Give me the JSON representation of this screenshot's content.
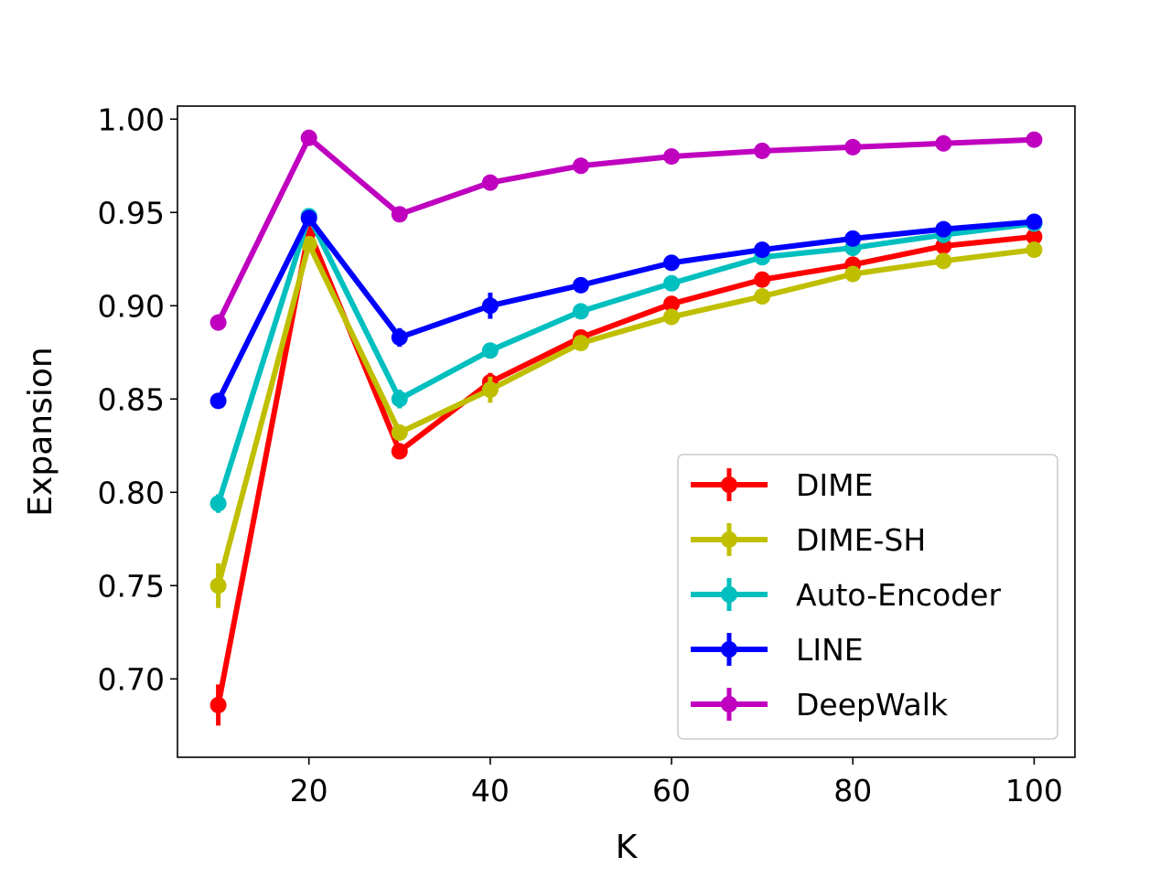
{
  "chart_data": {
    "type": "line",
    "title": "",
    "xlabel": "K",
    "ylabel": "Expansion",
    "xlim": [
      5.5,
      104.5
    ],
    "ylim": [
      0.658,
      1.007
    ],
    "xticks": [
      20,
      40,
      60,
      80,
      100
    ],
    "xtick_labels": [
      "20",
      "40",
      "60",
      "80",
      "100"
    ],
    "yticks": [
      0.7,
      0.75,
      0.8,
      0.85,
      0.9,
      0.95,
      1.0
    ],
    "ytick_labels": [
      "0.70",
      "0.75",
      "0.80",
      "0.85",
      "0.90",
      "0.95",
      "1.00"
    ],
    "grid": false,
    "legend_position": "lower-right",
    "x": [
      10,
      20,
      30,
      40,
      50,
      60,
      70,
      80,
      90,
      100
    ],
    "series": [
      {
        "name": "DIME",
        "color": "#ff0000",
        "values": [
          0.686,
          0.94,
          0.822,
          0.859,
          0.883,
          0.901,
          0.914,
          0.922,
          0.932,
          0.937
        ],
        "errors": [
          0.011,
          0.003,
          0.003,
          0.005,
          0.003,
          0.003,
          0.003,
          0.003,
          0.003,
          0.002
        ]
      },
      {
        "name": "DIME-SH",
        "color": "#bfbf00",
        "values": [
          0.75,
          0.933,
          0.832,
          0.855,
          0.88,
          0.894,
          0.905,
          0.917,
          0.924,
          0.93
        ],
        "errors": [
          0.012,
          0.003,
          0.004,
          0.007,
          0.004,
          0.004,
          0.004,
          0.003,
          0.003,
          0.002
        ]
      },
      {
        "name": "Auto-Encoder",
        "color": "#00bfbf",
        "values": [
          0.794,
          0.948,
          0.85,
          0.876,
          0.897,
          0.912,
          0.926,
          0.931,
          0.938,
          0.944
        ],
        "errors": [
          0.005,
          0.002,
          0.005,
          0.003,
          0.002,
          0.002,
          0.002,
          0.002,
          0.002,
          0.002
        ]
      },
      {
        "name": "LINE",
        "color": "#0000ff",
        "values": [
          0.849,
          0.947,
          0.883,
          0.9,
          0.911,
          0.923,
          0.93,
          0.936,
          0.941,
          0.945
        ],
        "errors": [
          0.003,
          0.003,
          0.005,
          0.007,
          0.004,
          0.003,
          0.002,
          0.004,
          0.002,
          0.002
        ]
      },
      {
        "name": "DeepWalk",
        "color": "#bf00bf",
        "values": [
          0.891,
          0.99,
          0.949,
          0.966,
          0.975,
          0.98,
          0.983,
          0.985,
          0.987,
          0.989
        ],
        "errors": [
          0.002,
          0.001,
          0.001,
          0.001,
          0.001,
          0.001,
          0.001,
          0.001,
          0.001,
          0.001
        ]
      }
    ]
  }
}
